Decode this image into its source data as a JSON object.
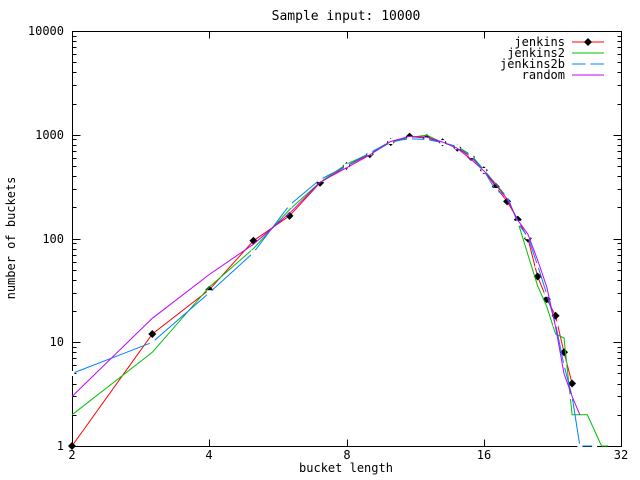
{
  "window": {
    "kind": "gnuplot-chart"
  },
  "colors": {
    "background": "#ffffff",
    "axis": "#000000",
    "text": "#000000",
    "jenkins": "#ff0000",
    "jenkins2": "#00c000",
    "jenkins2b": "#0080ff",
    "random": "#c000ff"
  },
  "chart_data": {
    "type": "line",
    "title": "Sample input: 10000",
    "xlabel": "bucket length",
    "ylabel": "number of buckets",
    "x_scale": "log2",
    "y_scale": "log10",
    "xlim": [
      2,
      32
    ],
    "ylim": [
      1,
      10000
    ],
    "x_ticks": [
      2,
      4,
      8,
      16,
      32
    ],
    "y_ticks": [
      1,
      10,
      100,
      1000,
      10000
    ],
    "grid": false,
    "legend_position": "top-right-inside",
    "series": [
      {
        "name": "jenkins",
        "color": "#ff0000",
        "marker": "diamond",
        "points": [
          [
            2,
            1
          ],
          [
            3,
            12
          ],
          [
            4,
            32
          ],
          [
            5,
            95
          ],
          [
            6,
            165
          ],
          [
            7,
            345
          ],
          [
            8,
            500
          ],
          [
            9,
            650
          ],
          [
            10,
            850
          ],
          [
            11,
            960
          ],
          [
            12,
            930
          ],
          [
            13,
            845
          ],
          [
            14,
            750
          ],
          [
            15,
            610
          ],
          [
            16,
            455
          ],
          [
            17,
            315
          ],
          [
            18,
            228
          ],
          [
            19,
            152
          ],
          [
            20,
            100
          ],
          [
            21,
            43
          ],
          [
            22,
            26
          ],
          [
            23,
            18
          ],
          [
            24,
            8
          ],
          [
            25,
            4
          ]
        ]
      },
      {
        "name": "jenkins2",
        "color": "#00c000",
        "marker": "plus",
        "points": [
          [
            2,
            2
          ],
          [
            3,
            8
          ],
          [
            4,
            34
          ],
          [
            5,
            80
          ],
          [
            6,
            190
          ],
          [
            7,
            350
          ],
          [
            8,
            520
          ],
          [
            9,
            660
          ],
          [
            10,
            840
          ],
          [
            11,
            940
          ],
          [
            12,
            990
          ],
          [
            13,
            840
          ],
          [
            14,
            770
          ],
          [
            15,
            640
          ],
          [
            16,
            460
          ],
          [
            17,
            335
          ],
          [
            18,
            250
          ],
          [
            19,
            145
          ],
          [
            20,
            70
          ],
          [
            21,
            35
          ],
          [
            22,
            22
          ],
          [
            23,
            12
          ],
          [
            24,
            11
          ],
          [
            25,
            2
          ],
          [
            26,
            2
          ],
          [
            27,
            2
          ],
          [
            29,
            1
          ],
          [
            30,
            1
          ]
        ]
      },
      {
        "name": "jenkins2b",
        "color": "#0080ff",
        "marker": "square",
        "points": [
          [
            2,
            5
          ],
          [
            3,
            10
          ],
          [
            4,
            30
          ],
          [
            5,
            73
          ],
          [
            6,
            210
          ],
          [
            7,
            370
          ],
          [
            8,
            500
          ],
          [
            9,
            670
          ],
          [
            10,
            860
          ],
          [
            11,
            915
          ],
          [
            12,
            900
          ],
          [
            13,
            840
          ],
          [
            14,
            765
          ],
          [
            15,
            630
          ],
          [
            16,
            452
          ],
          [
            17,
            290
          ],
          [
            18,
            258
          ],
          [
            19,
            140
          ],
          [
            20,
            104
          ],
          [
            21,
            55
          ],
          [
            22,
            29
          ],
          [
            23,
            15
          ],
          [
            24,
            6
          ],
          [
            25,
            3
          ],
          [
            26,
            1
          ],
          [
            28,
            1
          ]
        ]
      },
      {
        "name": "random",
        "color": "#c000ff",
        "marker": "x",
        "points": [
          [
            2,
            3
          ],
          [
            3,
            17
          ],
          [
            4,
            45
          ],
          [
            5,
            88
          ],
          [
            6,
            175
          ],
          [
            7,
            350
          ],
          [
            8,
            480
          ],
          [
            9,
            640
          ],
          [
            10,
            860
          ],
          [
            11,
            965
          ],
          [
            12,
            950
          ],
          [
            13,
            850
          ],
          [
            14,
            740
          ],
          [
            15,
            580
          ],
          [
            16,
            450
          ],
          [
            17,
            330
          ],
          [
            18,
            240
          ],
          [
            19,
            150
          ],
          [
            20,
            110
          ],
          [
            21,
            62
          ],
          [
            22,
            34
          ],
          [
            23,
            14
          ],
          [
            24,
            5
          ],
          [
            25,
            3
          ],
          [
            26,
            2
          ]
        ]
      }
    ]
  }
}
